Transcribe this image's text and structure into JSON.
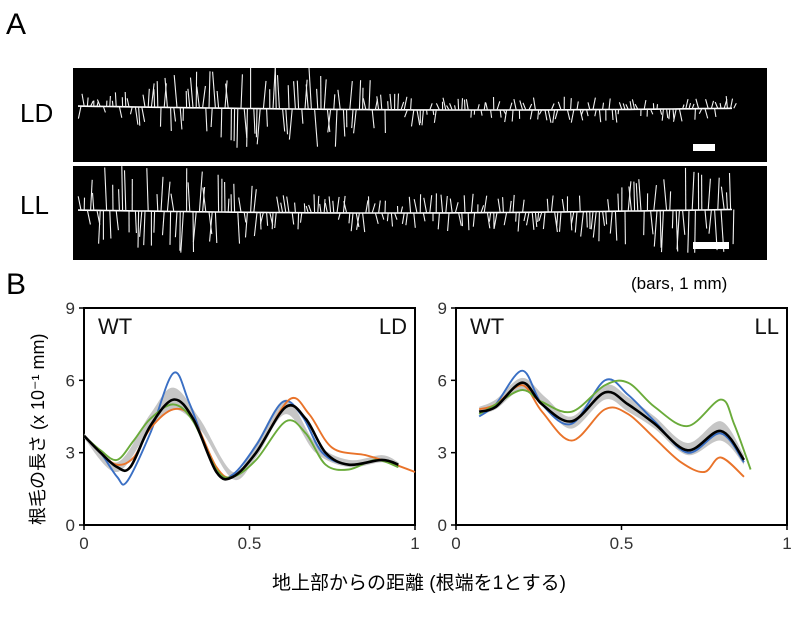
{
  "panel_a": {
    "letter": "A",
    "rows": [
      {
        "label": "LD"
      },
      {
        "label": "LL"
      }
    ]
  },
  "panel_b": {
    "letter": "B",
    "scale_note": "(bars, 1 mm)",
    "ylabel": "根毛の長さ (x 10⁻¹ mm)",
    "xlabel": "地上部からの距離 (根端を1とする)"
  },
  "chart_data": [
    {
      "type": "line",
      "panel_label_left": "WT",
      "panel_label_right": "LD",
      "xlim": [
        0,
        1
      ],
      "ylim": [
        0,
        9
      ],
      "xticks": [
        "0",
        "0.5",
        "1"
      ],
      "yticks": [
        "0",
        "3",
        "6",
        "9"
      ],
      "band": {
        "x": [
          0.0,
          0.1,
          0.2,
          0.27,
          0.35,
          0.45,
          0.52,
          0.61,
          0.7,
          0.8,
          0.9,
          0.95
        ],
        "lower": [
          3.6,
          2.2,
          4.0,
          4.8,
          4.0,
          1.9,
          2.8,
          4.6,
          3.0,
          2.4,
          2.6,
          2.4
        ],
        "upper": [
          3.8,
          2.6,
          4.6,
          5.7,
          4.4,
          2.2,
          3.4,
          5.2,
          3.4,
          2.7,
          2.9,
          2.6
        ]
      },
      "series": [
        {
          "color": "#3a6fc4",
          "x": [
            0.0,
            0.05,
            0.1,
            0.13,
            0.2,
            0.27,
            0.32,
            0.4,
            0.45,
            0.52,
            0.6,
            0.66,
            0.72,
            0.8,
            0.9,
            0.95
          ],
          "y": [
            3.7,
            3.0,
            2.0,
            1.8,
            3.8,
            6.3,
            5.0,
            2.2,
            2.1,
            3.3,
            5.1,
            4.5,
            3.0,
            2.5,
            2.7,
            2.5
          ]
        },
        {
          "color": "#e9732a",
          "x": [
            0.0,
            0.05,
            0.1,
            0.15,
            0.2,
            0.27,
            0.33,
            0.4,
            0.45,
            0.52,
            0.62,
            0.68,
            0.75,
            0.85,
            0.92,
            1.0
          ],
          "y": [
            3.7,
            3.0,
            2.5,
            2.8,
            4.0,
            4.8,
            4.4,
            2.4,
            2.0,
            3.0,
            5.2,
            4.6,
            3.2,
            2.9,
            2.6,
            2.2
          ]
        },
        {
          "color": "#6aab3a",
          "x": [
            0.0,
            0.05,
            0.1,
            0.15,
            0.2,
            0.27,
            0.33,
            0.4,
            0.45,
            0.52,
            0.61,
            0.67,
            0.73,
            0.8,
            0.88,
            0.95
          ],
          "y": [
            3.7,
            3.1,
            2.7,
            3.5,
            4.4,
            5.0,
            4.3,
            2.3,
            2.0,
            2.7,
            4.3,
            3.8,
            2.5,
            2.3,
            2.7,
            2.4
          ]
        },
        {
          "color": "#000000",
          "x": [
            0.0,
            0.05,
            0.1,
            0.14,
            0.2,
            0.27,
            0.33,
            0.4,
            0.45,
            0.52,
            0.61,
            0.67,
            0.73,
            0.8,
            0.9,
            0.95
          ],
          "y": [
            3.7,
            3.0,
            2.4,
            2.4,
            4.1,
            5.2,
            4.4,
            2.2,
            2.0,
            3.0,
            4.9,
            4.4,
            3.0,
            2.5,
            2.7,
            2.5
          ]
        }
      ]
    },
    {
      "type": "line",
      "panel_label_left": "WT",
      "panel_label_right": "LL",
      "xlim": [
        0,
        1
      ],
      "ylim": [
        0,
        9
      ],
      "xticks": [
        "0",
        "0.5",
        "1"
      ],
      "yticks": [
        "0",
        "3",
        "6",
        "9"
      ],
      "band": {
        "x": [
          0.07,
          0.12,
          0.2,
          0.27,
          0.35,
          0.45,
          0.52,
          0.6,
          0.7,
          0.8,
          0.87
        ],
        "lower": [
          4.6,
          4.8,
          5.6,
          4.9,
          4.0,
          5.2,
          4.7,
          4.0,
          2.9,
          3.5,
          2.5
        ],
        "upper": [
          4.9,
          5.2,
          6.1,
          5.3,
          4.5,
          5.8,
          5.3,
          4.5,
          3.4,
          4.3,
          2.9
        ]
      },
      "series": [
        {
          "color": "#3a6fc4",
          "x": [
            0.07,
            0.12,
            0.2,
            0.26,
            0.35,
            0.45,
            0.52,
            0.6,
            0.7,
            0.8,
            0.87
          ],
          "y": [
            4.5,
            5.0,
            6.4,
            5.0,
            4.2,
            6.0,
            5.4,
            4.3,
            3.0,
            3.8,
            2.6
          ]
        },
        {
          "color": "#e9732a",
          "x": [
            0.07,
            0.12,
            0.2,
            0.26,
            0.35,
            0.45,
            0.52,
            0.6,
            0.68,
            0.75,
            0.8,
            0.87
          ],
          "y": [
            4.8,
            5.0,
            5.8,
            4.7,
            3.5,
            4.8,
            4.6,
            3.6,
            2.6,
            2.2,
            2.8,
            2.0
          ]
        },
        {
          "color": "#6aab3a",
          "x": [
            0.07,
            0.12,
            0.2,
            0.26,
            0.35,
            0.45,
            0.52,
            0.6,
            0.7,
            0.8,
            0.84,
            0.89
          ],
          "y": [
            4.6,
            5.0,
            5.6,
            5.1,
            4.7,
            5.8,
            5.9,
            4.9,
            4.1,
            5.2,
            4.2,
            2.3
          ]
        },
        {
          "color": "#000000",
          "x": [
            0.07,
            0.12,
            0.2,
            0.26,
            0.35,
            0.45,
            0.52,
            0.6,
            0.7,
            0.8,
            0.87
          ],
          "y": [
            4.7,
            4.9,
            5.9,
            5.0,
            4.3,
            5.5,
            5.0,
            4.2,
            3.1,
            3.9,
            2.7
          ]
        }
      ]
    }
  ]
}
